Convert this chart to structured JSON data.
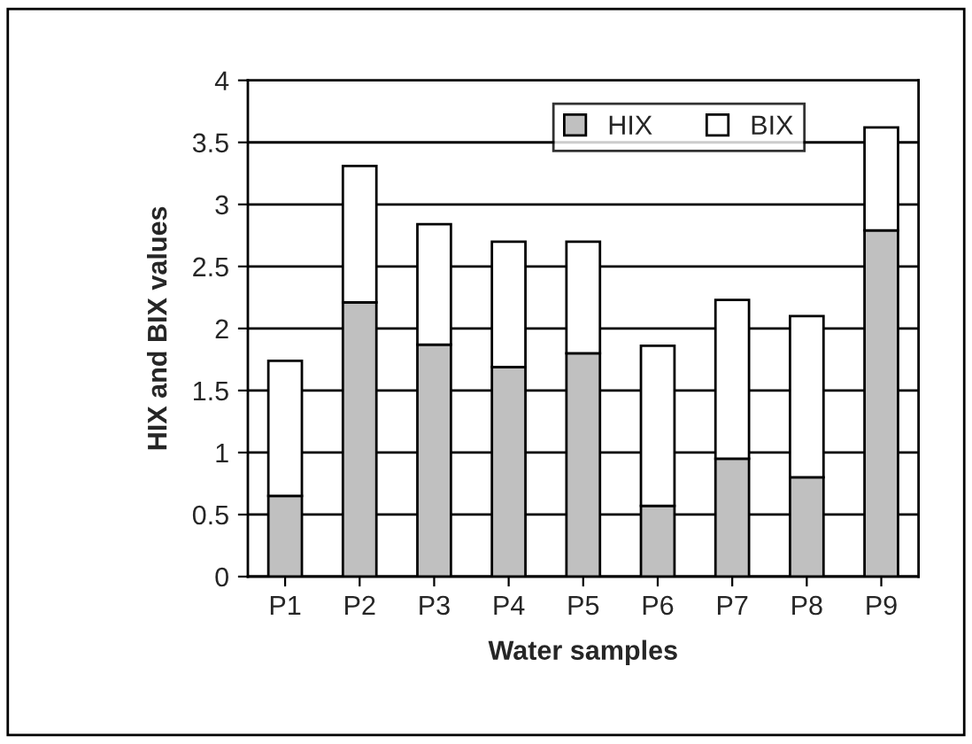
{
  "chart_data": {
    "type": "bar",
    "stacked": true,
    "xlabel": "Water samples",
    "ylabel": "HIX and BIX values",
    "categories": [
      "P1",
      "P2",
      "P3",
      "P4",
      "P5",
      "P6",
      "P7",
      "P8",
      "P9"
    ],
    "series": [
      {
        "name": "HIX",
        "color": "#c0c0c0",
        "values": [
          0.65,
          2.21,
          1.87,
          1.69,
          1.8,
          0.57,
          0.95,
          0.8,
          2.79
        ]
      },
      {
        "name": "BIX",
        "color": "#ffffff",
        "values": [
          1.09,
          1.1,
          0.97,
          1.01,
          0.9,
          1.29,
          1.28,
          1.3,
          0.83
        ]
      }
    ],
    "ylim": [
      0,
      4
    ],
    "yticks": [
      0,
      0.5,
      1,
      1.5,
      2,
      2.5,
      3,
      3.5,
      4
    ],
    "grid": "y",
    "legend": "top right"
  }
}
